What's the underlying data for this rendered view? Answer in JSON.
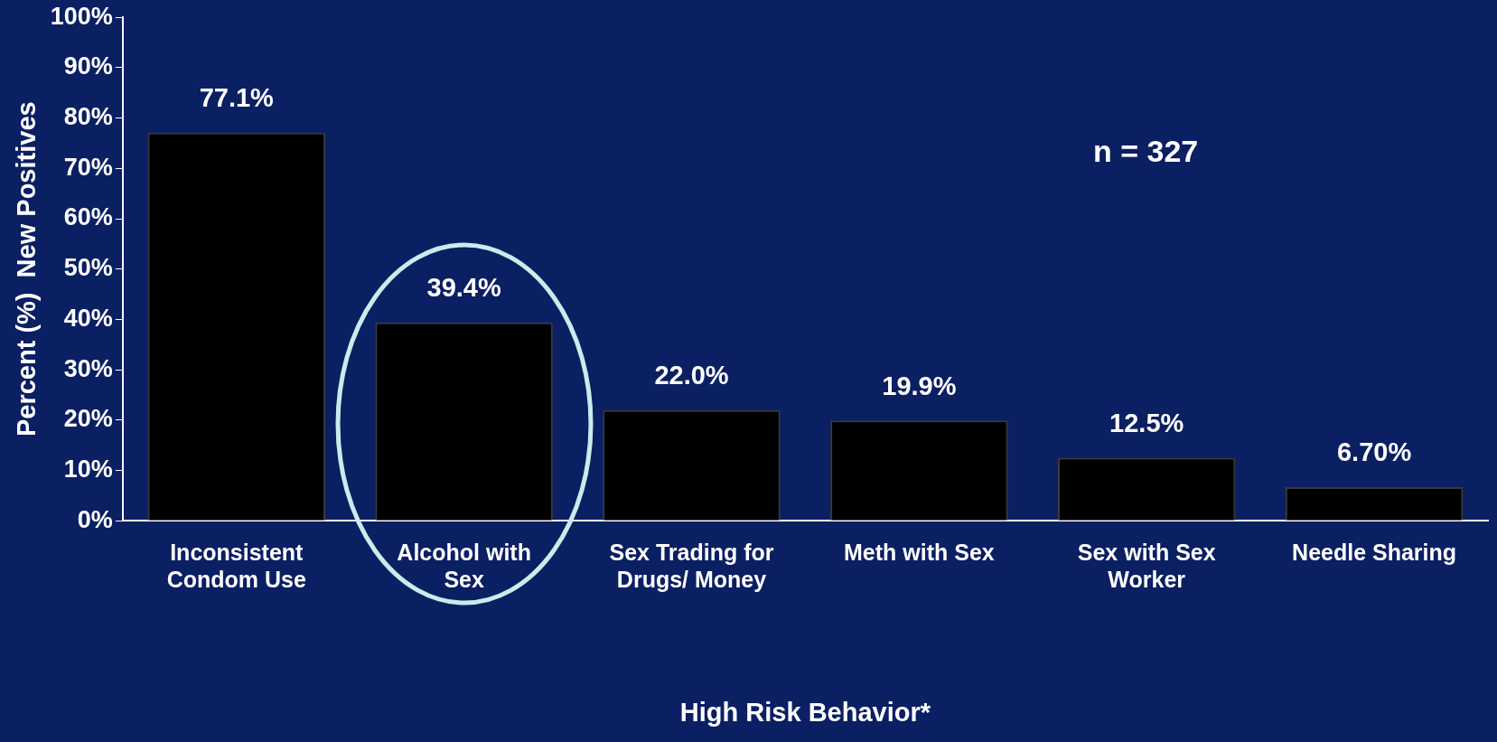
{
  "chart_data": {
    "type": "bar",
    "categories": [
      "Inconsistent\nCondom Use",
      "Alcohol with\nSex",
      "Sex Trading for\nDrugs/ Money",
      "Meth with Sex",
      "Sex with Sex\nWorker",
      "Needle Sharing"
    ],
    "values": [
      77.1,
      39.4,
      22.0,
      19.9,
      12.5,
      6.7
    ],
    "value_labels": [
      "77.1%",
      "39.4%",
      "22.0%",
      "19.9%",
      "12.5%",
      "6.70%"
    ],
    "color": "#000000",
    "xlabel": "High Risk Behavior*",
    "ylabel": "Percent (%)  New Positives",
    "ylim": [
      0,
      100
    ],
    "yticks": [
      {
        "value": 0,
        "label": "0%"
      },
      {
        "value": 10,
        "label": "10%"
      },
      {
        "value": 20,
        "label": "20%"
      },
      {
        "value": 30,
        "label": "30%"
      },
      {
        "value": 40,
        "label": "40%"
      },
      {
        "value": 50,
        "label": "50%"
      },
      {
        "value": 60,
        "label": "60%"
      },
      {
        "value": 70,
        "label": "70%"
      },
      {
        "value": 80,
        "label": "80%"
      },
      {
        "value": 90,
        "label": "90%"
      },
      {
        "value": 100,
        "label": "100%"
      }
    ],
    "annotations": [
      "n = 327"
    ],
    "grid": false,
    "legend": false
  }
}
